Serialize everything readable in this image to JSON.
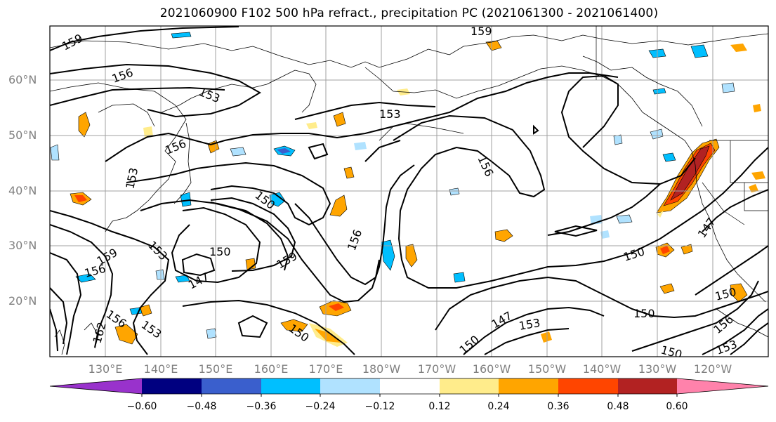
{
  "title": "2021060900 F102 500 hPa refract., precipitation PC (2021061300 - 2021061400)",
  "lat_labels": [
    "60°N",
    "50°N",
    "40°N",
    "30°N",
    "20°N"
  ],
  "lon_labels": [
    "130°E",
    "140°E",
    "150°E",
    "160°E",
    "170°E",
    "180°W",
    "170°W",
    "160°W",
    "150°W",
    "140°W",
    "130°W",
    "120°W"
  ],
  "contour_labels": [
    "159",
    "156",
    "153",
    "153",
    "156",
    "153",
    "150",
    "159",
    "156",
    "153",
    "150",
    "147",
    "150",
    "159",
    "156",
    "150",
    "147",
    "153",
    "150",
    "150",
    "150",
    "147",
    "150",
    "156",
    "153",
    "162",
    "156",
    "159",
    "156",
    "153"
  ],
  "colorbar": {
    "ticks": [
      "−0.60",
      "−0.48",
      "−0.36",
      "−0.24",
      "−0.12",
      "0.12",
      "0.24",
      "0.36",
      "0.48",
      "0.60"
    ],
    "colors": [
      "#9932CC",
      "#000080",
      "#3A5FCD",
      "#00BFFF",
      "#B0E2FF",
      "#FFFFFF",
      "#FFEC8B",
      "#FFA500",
      "#FF4500",
      "#B22222",
      "#FF82AB"
    ]
  },
  "colors": {
    "contour": "#000000",
    "grid": "#a0a0a0",
    "label_gray": "#808080"
  }
}
